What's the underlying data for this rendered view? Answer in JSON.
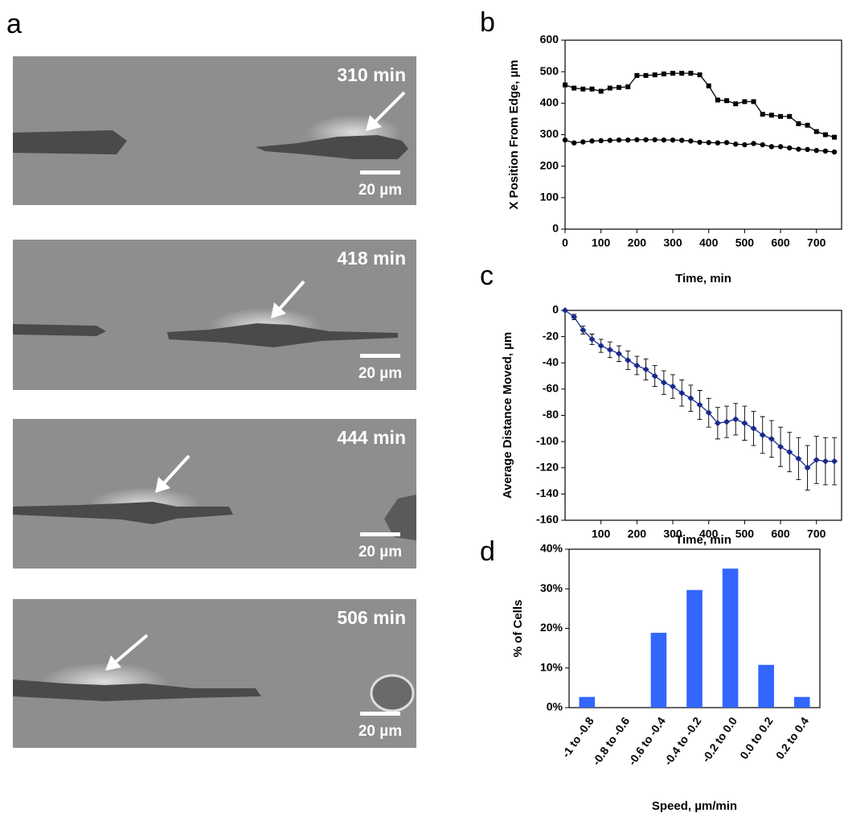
{
  "figure": {
    "panel_labels": [
      "a",
      "b",
      "c",
      "d"
    ],
    "frames": [
      {
        "time": "310 min",
        "scale": "20 µm"
      },
      {
        "time": "418 min",
        "scale": "20 µm"
      },
      {
        "time": "444 min",
        "scale": "20 µm"
      },
      {
        "time": "506 min",
        "scale": "20 µm"
      }
    ]
  },
  "chart_data": [
    {
      "type": "line",
      "xlabel": "Time, min",
      "ylabel": "X Position From Edge, µm",
      "x": [
        0,
        25,
        50,
        75,
        100,
        125,
        150,
        175,
        200,
        225,
        250,
        275,
        300,
        325,
        350,
        375,
        400,
        425,
        450,
        475,
        500,
        525,
        550,
        575,
        600,
        625,
        650,
        675,
        700,
        725,
        750
      ],
      "series": [
        {
          "color": "#000000",
          "marker": "square",
          "values": [
            458,
            448,
            445,
            445,
            438,
            448,
            450,
            452,
            488,
            488,
            490,
            493,
            495,
            495,
            495,
            490,
            455,
            410,
            408,
            398,
            405,
            405,
            365,
            362,
            358,
            358,
            335,
            330,
            310,
            300,
            292
          ]
        },
        {
          "color": "#000000",
          "marker": "circle",
          "values": [
            283,
            274,
            277,
            280,
            281,
            282,
            283,
            283,
            284,
            284,
            284,
            283,
            283,
            282,
            280,
            276,
            275,
            274,
            275,
            270,
            268,
            272,
            268,
            262,
            262,
            258,
            254,
            253,
            250,
            248,
            245
          ]
        }
      ],
      "xlim": [
        0,
        770
      ],
      "xticks": [
        0,
        100,
        200,
        300,
        400,
        500,
        600,
        700
      ],
      "ylim": [
        0,
        600
      ],
      "yticks": [
        0,
        100,
        200,
        300,
        400,
        500,
        600
      ]
    },
    {
      "type": "line",
      "xlabel": "Time, min",
      "ylabel": "Average Distance Moved, µm",
      "x": [
        0,
        25,
        50,
        75,
        100,
        125,
        150,
        175,
        200,
        225,
        250,
        275,
        300,
        325,
        350,
        375,
        400,
        425,
        450,
        475,
        500,
        525,
        550,
        575,
        600,
        625,
        650,
        675,
        700,
        725,
        750
      ],
      "series": [
        {
          "color": "#1a2a8c",
          "marker": "diamond",
          "values": [
            0,
            -5,
            -15,
            -22,
            -27,
            -30,
            -33,
            -38,
            -42,
            -45,
            -50,
            -55,
            -58,
            -63,
            -67,
            -72,
            -78,
            -86,
            -85,
            -83,
            -86,
            -90,
            -95,
            -98,
            -104,
            -108,
            -113,
            -120,
            -114,
            -115,
            -115
          ],
          "errors": [
            0,
            2,
            3,
            4,
            5,
            6,
            6,
            7,
            7,
            8,
            8,
            9,
            9,
            10,
            10,
            11,
            11,
            12,
            12,
            12,
            13,
            13,
            14,
            14,
            15,
            15,
            16,
            17,
            18,
            18,
            18
          ]
        }
      ],
      "xlim": [
        0,
        770
      ],
      "xticks": [
        100,
        200,
        300,
        400,
        500,
        600,
        700
      ],
      "ylim": [
        -160,
        0
      ],
      "yticks": [
        -160,
        -140,
        -120,
        -100,
        -80,
        -60,
        -40,
        -20,
        0
      ]
    },
    {
      "type": "bar",
      "xlabel": "Speed, µm/min",
      "ylabel": "% of Cells",
      "color": "#3366ff",
      "categories": [
        "-1 to -0.8",
        "-0.8 to -0.6",
        "-0.6 to -0.4",
        "-0.4 to -0.2",
        "-0.2 to 0.0",
        "0.0 to 0.2",
        "0.2 to 0.4"
      ],
      "values": [
        2.7,
        0,
        18.9,
        29.7,
        35.1,
        10.8,
        2.7
      ],
      "ylim": [
        0,
        40
      ],
      "yticks": [
        {
          "value": 0,
          "label": "0%"
        },
        {
          "value": 10,
          "label": "10%"
        },
        {
          "value": 20,
          "label": "20%"
        },
        {
          "value": 30,
          "label": "30%"
        },
        {
          "value": 40,
          "label": "40%"
        }
      ]
    }
  ]
}
